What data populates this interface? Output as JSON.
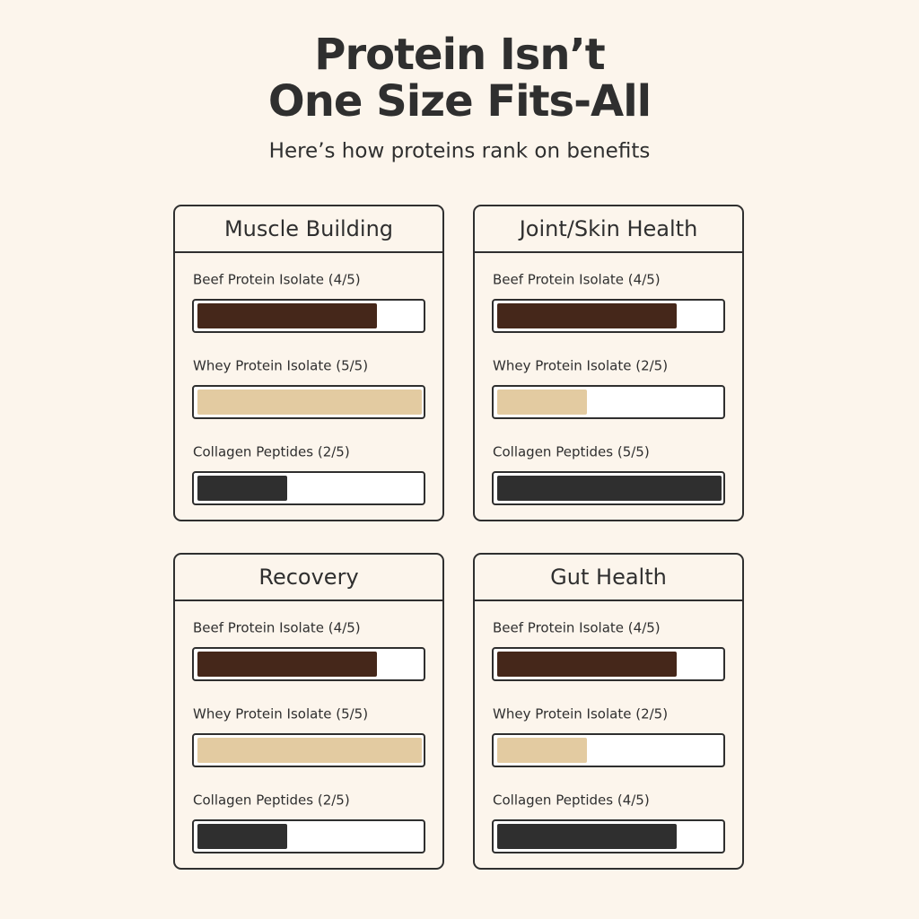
{
  "header": {
    "title": [
      "Protein Isn’t",
      "One Size Fits-All"
    ],
    "subtitle": "Here’s how proteins rank on benefits"
  },
  "chart_data": [
    {
      "type": "bar",
      "title": "Muscle Building",
      "categories": [
        "Beef Protein Isolate (4/5)",
        "Whey Protein Isolate (5/5)",
        "Collagen Peptides (2/5)"
      ],
      "values": [
        4,
        5,
        2
      ],
      "colors": [
        "#45271a",
        "#e3cba1",
        "#2f2f2f"
      ],
      "xlim": [
        0,
        5
      ]
    },
    {
      "type": "bar",
      "title": "Joint/Skin Health",
      "categories": [
        "Beef Protein Isolate (4/5)",
        "Whey Protein Isolate (2/5)",
        "Collagen Peptides (5/5)"
      ],
      "values": [
        4,
        2,
        5
      ],
      "colors": [
        "#45271a",
        "#e3cba1",
        "#2f2f2f"
      ],
      "xlim": [
        0,
        5
      ]
    },
    {
      "type": "bar",
      "title": "Recovery",
      "categories": [
        "Beef Protein Isolate (4/5)",
        "Whey Protein Isolate (5/5)",
        "Collagen Peptides (2/5)"
      ],
      "values": [
        4,
        5,
        2
      ],
      "colors": [
        "#45271a",
        "#e3cba1",
        "#2f2f2f"
      ],
      "xlim": [
        0,
        5
      ]
    },
    {
      "type": "bar",
      "title": "Gut Health",
      "categories": [
        "Beef Protein Isolate (4/5)",
        "Whey Protein Isolate (2/5)",
        "Collagen Peptides (4/5)"
      ],
      "values": [
        4,
        2,
        4
      ],
      "colors": [
        "#45271a",
        "#e3cba1",
        "#2f2f2f"
      ],
      "xlim": [
        0,
        5
      ]
    }
  ]
}
